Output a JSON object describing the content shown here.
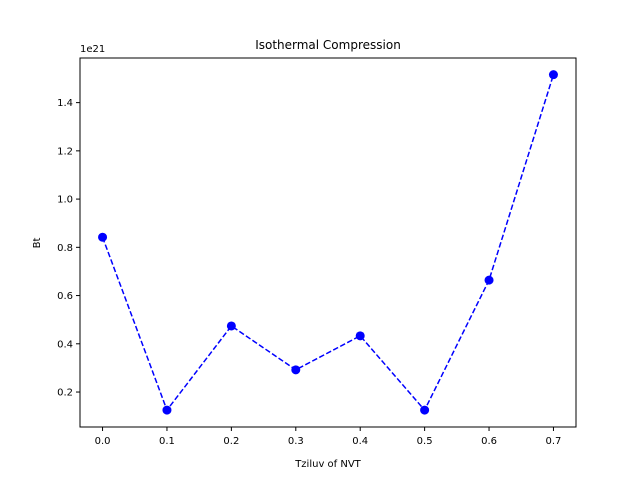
{
  "chart_data": {
    "type": "line",
    "title": "Isothermal Compression",
    "xlabel": "Tziluv of NVT",
    "ylabel": "Bt",
    "offset_label": "1e21",
    "x": [
      0.0,
      0.1,
      0.2,
      0.3,
      0.4,
      0.5,
      0.6,
      0.7
    ],
    "series": [
      {
        "values": [
          0.842,
          0.125,
          0.474,
          0.292,
          0.433,
          0.125,
          0.664,
          1.516
        ]
      }
    ],
    "xlim": [
      -0.035,
      0.735
    ],
    "ylim": [
      0.055,
      1.585
    ],
    "xticks": [
      0.0,
      0.1,
      0.2,
      0.3,
      0.4,
      0.5,
      0.6,
      0.7
    ],
    "xtick_labels": [
      "0.0",
      "0.1",
      "0.2",
      "0.3",
      "0.4",
      "0.5",
      "0.6",
      "0.7"
    ],
    "yticks": [
      0.2,
      0.4,
      0.6,
      0.8,
      1.0,
      1.2,
      1.4
    ],
    "ytick_labels": [
      "0.2",
      "0.4",
      "0.6",
      "0.8",
      "1.0",
      "1.2",
      "1.4"
    ],
    "grid": false,
    "line_style": "dashed",
    "marker": "circle",
    "color": "#0000ff"
  }
}
